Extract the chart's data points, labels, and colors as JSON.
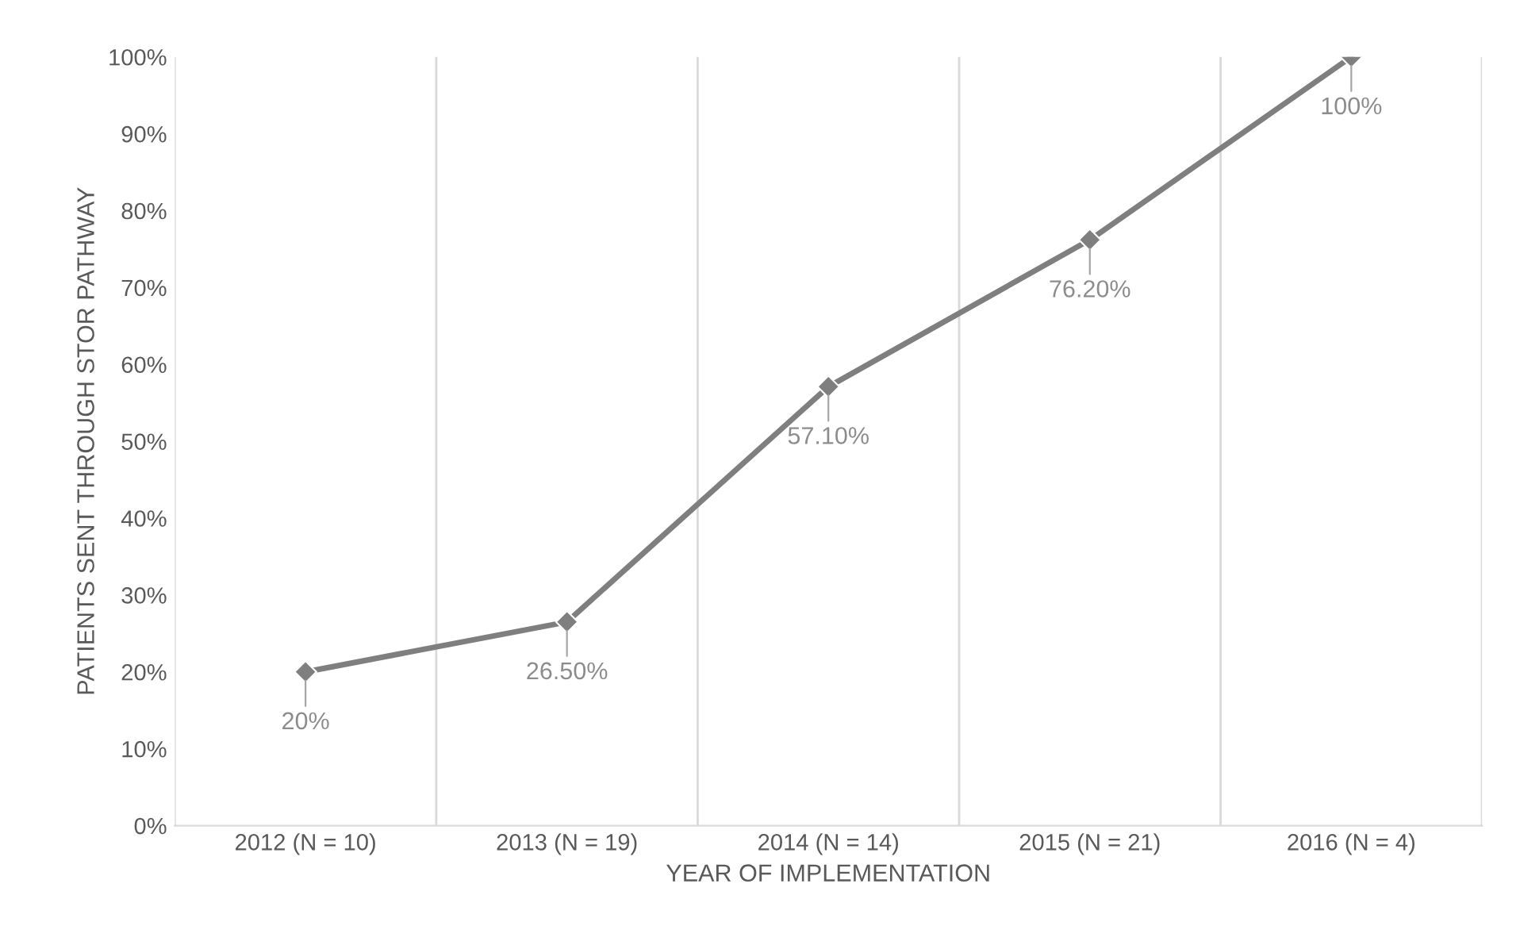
{
  "chart_data": {
    "type": "line",
    "xlabel": "YEAR OF IMPLEMENTATION",
    "ylabel": "PATIENTS SENT THROUGH STOR PATHWAY",
    "categories": [
      "2012 (N = 10)",
      "2013 (N = 19)",
      "2014 (N = 14)",
      "2015 (N = 21)",
      "2016 (N = 4)"
    ],
    "series": [
      {
        "color": "#7f7f7f",
        "values": [
          20,
          26.5,
          57.1,
          76.2,
          100
        ],
        "value_labels": [
          "20%",
          "26.50%",
          "57.10%",
          "76.20%",
          "100%"
        ]
      }
    ],
    "ylim": [
      0,
      100
    ],
    "yticks": [
      {
        "value": 0,
        "label": "0%"
      },
      {
        "value": 10,
        "label": "10%"
      },
      {
        "value": 20,
        "label": "20%"
      },
      {
        "value": 30,
        "label": "30%"
      },
      {
        "value": 40,
        "label": "40%"
      },
      {
        "value": 50,
        "label": "50%"
      },
      {
        "value": 60,
        "label": "60%"
      },
      {
        "value": 70,
        "label": "70%"
      },
      {
        "value": 80,
        "label": "80%"
      },
      {
        "value": 90,
        "label": "90%"
      },
      {
        "value": 100,
        "label": "100%"
      }
    ],
    "grid": "x",
    "marker": "diamond",
    "line_style": "solid",
    "legend": false
  }
}
